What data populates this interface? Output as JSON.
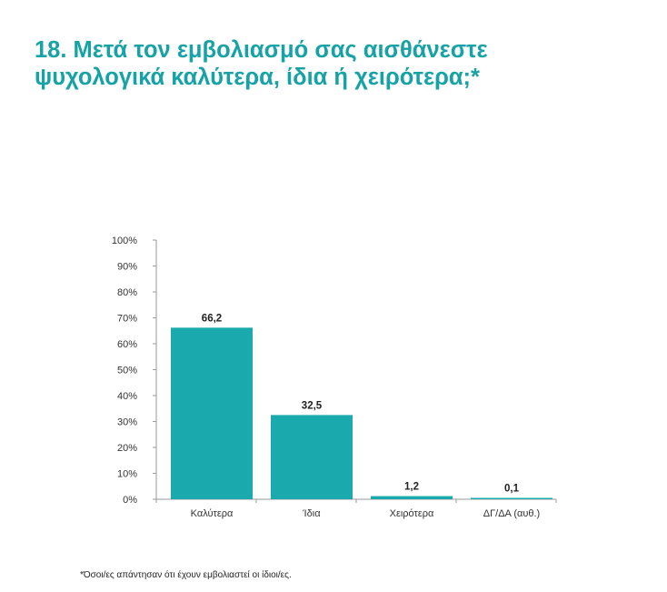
{
  "title": {
    "line1": "18. Μετά τον εμβολιασμό σας αισθάνεστε",
    "line2": "ψυχολογικά καλύτερα, ίδια ή χειρότερα;*"
  },
  "footnote": "*Όσοι/ες απάντησαν ότι έχουν εμβολιαστεί οι ίδιοι/ες.",
  "colors": {
    "title": "#17a2a6",
    "bar": "#1aa9ac",
    "axis": "#9a9a9a",
    "text": "#333333"
  },
  "chart_data": {
    "type": "bar",
    "categories": [
      "Καλύτερα",
      "Ίδια",
      "Χειρότερα",
      "ΔΓ/ΔΑ (αυθ.)"
    ],
    "values": [
      66.2,
      32.5,
      1.2,
      0.1
    ],
    "value_labels": [
      "66,2",
      "32,5",
      "1,2",
      "0,1"
    ],
    "ylim": [
      0,
      100
    ],
    "yticks": [
      0,
      10,
      20,
      30,
      40,
      50,
      60,
      70,
      80,
      90,
      100
    ],
    "ytick_labels": [
      "0%",
      "10%",
      "20%",
      "30%",
      "40%",
      "50%",
      "60%",
      "70%",
      "80%",
      "90%",
      "100%"
    ],
    "xlabel": "",
    "ylabel": "",
    "grid": false,
    "legend": "none"
  }
}
